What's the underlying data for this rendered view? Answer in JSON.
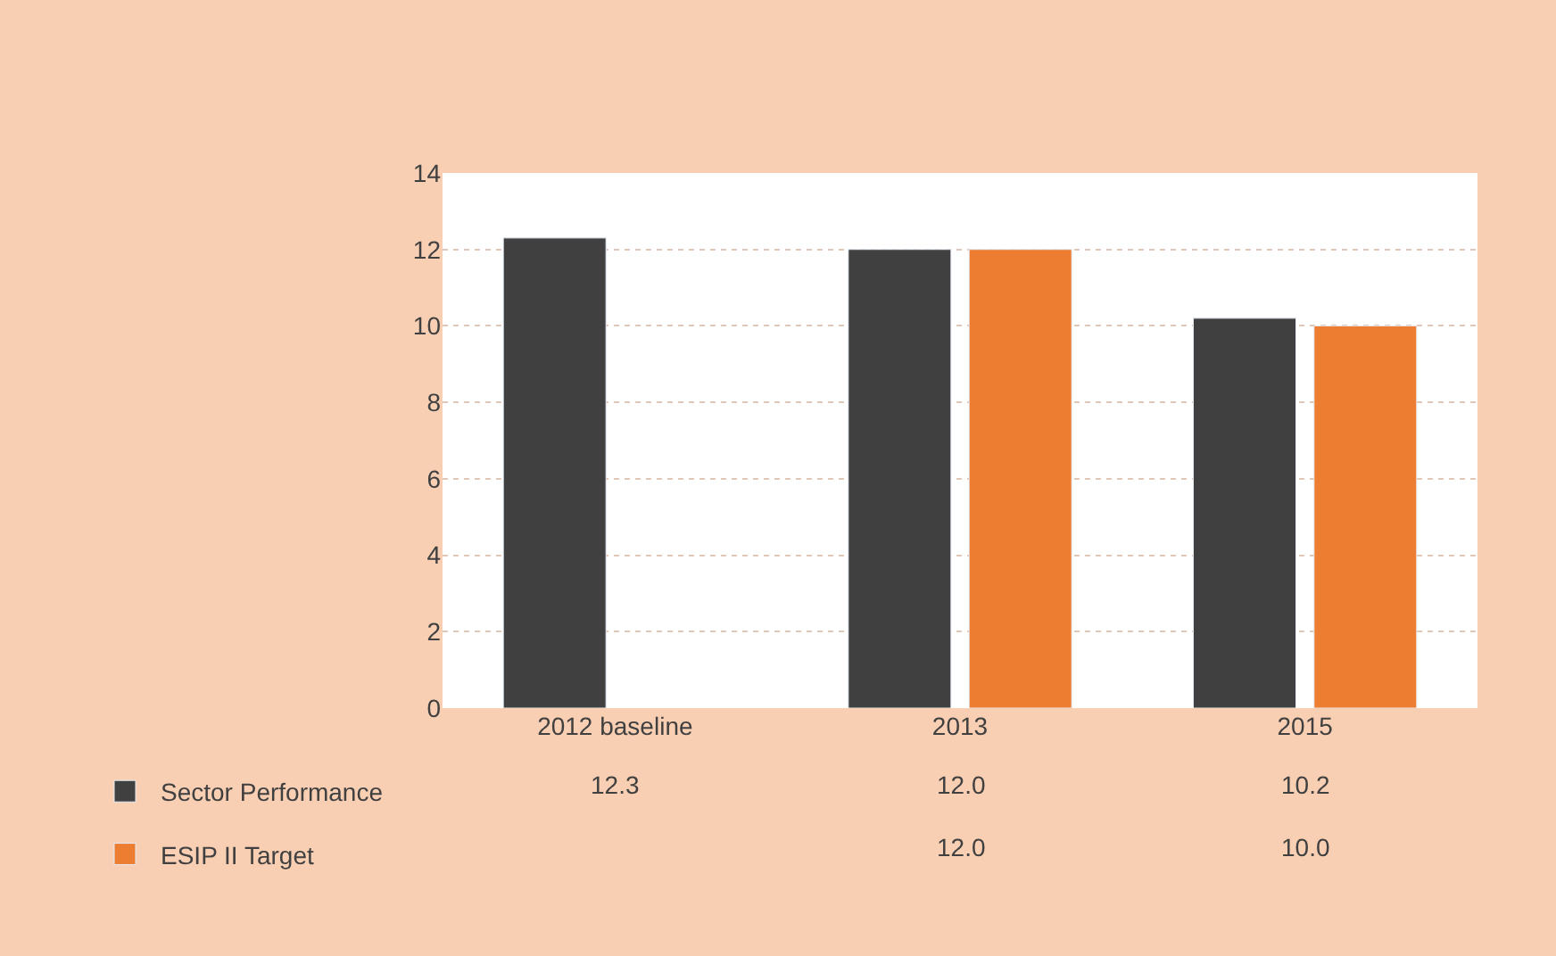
{
  "chart_data": {
    "type": "bar",
    "categories": [
      "2012 baseline",
      "2013",
      "2015"
    ],
    "series": [
      {
        "name": "Sector Performance",
        "color": "#404040",
        "values": [
          12.3,
          12.0,
          10.2
        ],
        "value_labels": [
          "12.3",
          "12.0",
          "10.2"
        ]
      },
      {
        "name": "ESIP II Target",
        "color": "#ed7d31",
        "values": [
          null,
          12.0,
          10.0
        ],
        "value_labels": [
          null,
          "12.0",
          "10.0"
        ]
      }
    ],
    "ylim": [
      0,
      14
    ],
    "yticks": [
      0,
      2,
      4,
      6,
      8,
      10,
      12,
      14
    ],
    "grid": "y",
    "legend": "bottom left"
  }
}
